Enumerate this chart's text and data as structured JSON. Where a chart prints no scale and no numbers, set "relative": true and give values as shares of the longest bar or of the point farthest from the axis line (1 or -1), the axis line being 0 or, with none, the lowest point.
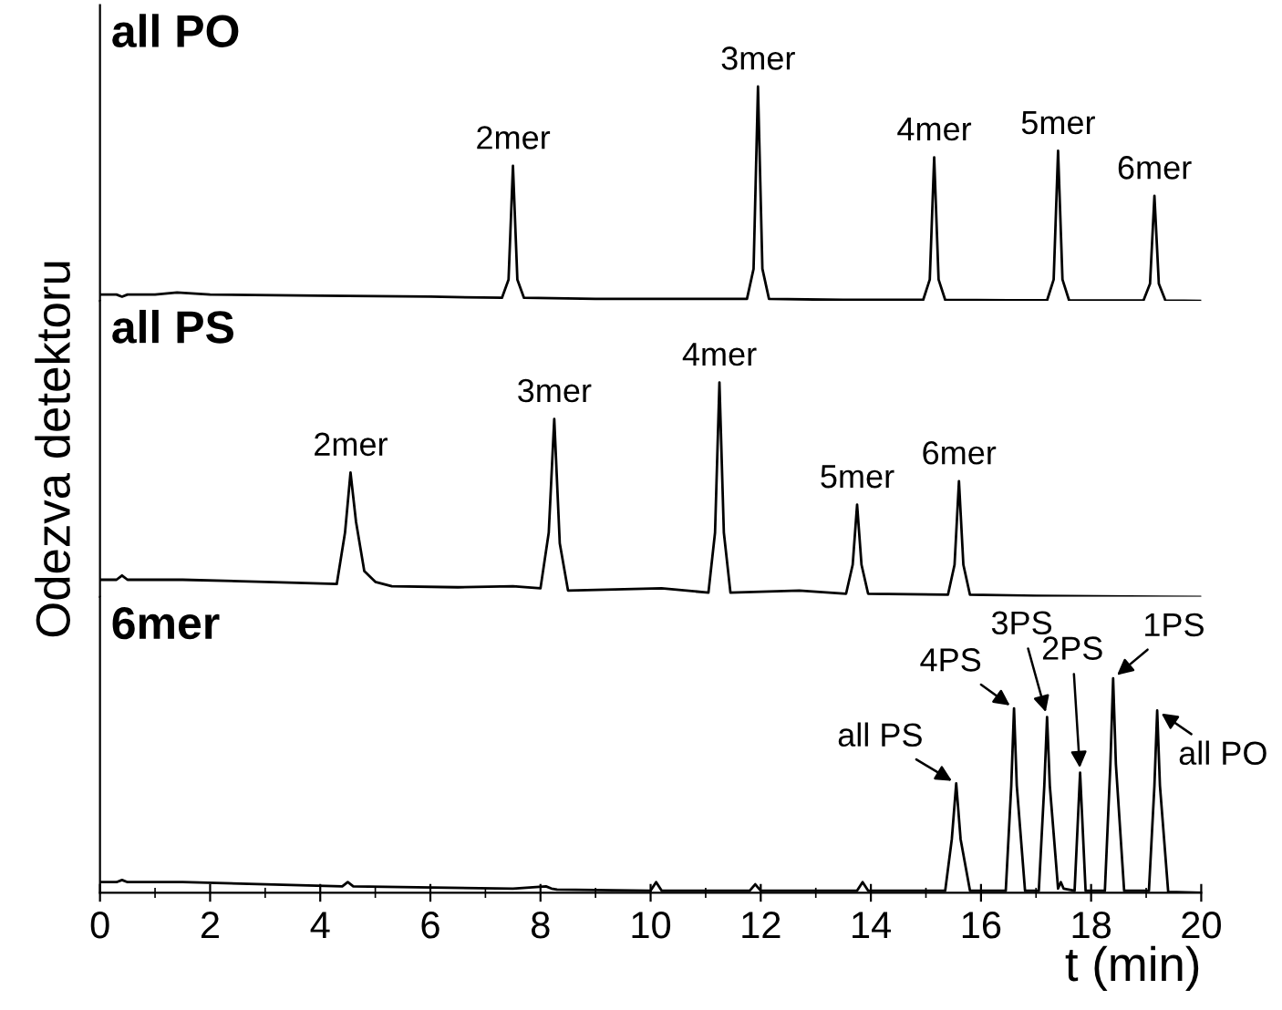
{
  "chart_data": [
    {
      "type": "line",
      "title": "all PO",
      "relative": true,
      "xlim": [
        0,
        20
      ],
      "tick_labels": false,
      "grid": false,
      "series": [
        {
          "color": "#000000",
          "x": [
            0,
            0.3,
            0.4,
            0.5,
            1.0,
            1.4,
            2.0,
            4.0,
            6.0,
            7.3,
            7.42,
            7.5,
            7.58,
            7.7,
            9.0,
            11.75,
            11.87,
            11.95,
            12.03,
            12.15,
            13.5,
            14.95,
            15.07,
            15.15,
            15.23,
            15.35,
            16.5,
            17.2,
            17.32,
            17.4,
            17.48,
            17.6,
            18.3,
            18.95,
            19.07,
            19.15,
            19.23,
            19.35,
            20
          ],
          "values": [
            0.03,
            0.03,
            0.02,
            0.03,
            0.03,
            0.04,
            0.03,
            0.025,
            0.02,
            0.015,
            0.1,
            0.63,
            0.1,
            0.015,
            0.01,
            0.01,
            0.15,
            1.0,
            0.15,
            0.01,
            0.005,
            0.005,
            0.1,
            0.67,
            0.1,
            0.005,
            0.003,
            0.003,
            0.1,
            0.7,
            0.1,
            0.003,
            0.002,
            0.002,
            0.08,
            0.49,
            0.08,
            0.002,
            0
          ]
        }
      ],
      "annotations": [
        {
          "text": "2mer",
          "x": 7.5,
          "y": 0.63
        },
        {
          "text": "3mer",
          "x": 11.95,
          "y": 1.0
        },
        {
          "text": "4mer",
          "x": 15.15,
          "y": 0.67
        },
        {
          "text": "5mer",
          "x": 17.4,
          "y": 0.7
        },
        {
          "text": "6mer",
          "x": 19.15,
          "y": 0.49
        }
      ]
    },
    {
      "type": "line",
      "title": "all PS",
      "relative": true,
      "xlim": [
        0,
        20
      ],
      "tick_labels": false,
      "grid": false,
      "ylabel": "Odezva detektoru",
      "series": [
        {
          "color": "#000000",
          "x": [
            0,
            0.3,
            0.4,
            0.5,
            1.0,
            1.5,
            3.0,
            4.3,
            4.45,
            4.55,
            4.65,
            4.8,
            5.0,
            5.3,
            6.5,
            7.5,
            8.0,
            8.15,
            8.25,
            8.35,
            8.5,
            10.2,
            11.05,
            11.17,
            11.25,
            11.33,
            11.45,
            12.7,
            13.55,
            13.67,
            13.75,
            13.83,
            13.95,
            15.4,
            15.52,
            15.6,
            15.68,
            15.8,
            17.0,
            20
          ],
          "values": [
            0.08,
            0.08,
            0.1,
            0.08,
            0.08,
            0.08,
            0.07,
            0.06,
            0.3,
            0.58,
            0.35,
            0.12,
            0.07,
            0.05,
            0.045,
            0.05,
            0.04,
            0.3,
            0.83,
            0.25,
            0.03,
            0.04,
            0.02,
            0.3,
            1.0,
            0.3,
            0.02,
            0.03,
            0.015,
            0.15,
            0.43,
            0.15,
            0.015,
            0.01,
            0.15,
            0.54,
            0.15,
            0.01,
            0.005,
            0
          ]
        }
      ],
      "annotations": [
        {
          "text": "2mer",
          "x": 4.55,
          "y": 0.58
        },
        {
          "text": "3mer",
          "x": 8.25,
          "y": 0.83
        },
        {
          "text": "4mer",
          "x": 11.25,
          "y": 1.0
        },
        {
          "text": "5mer",
          "x": 13.75,
          "y": 0.43
        },
        {
          "text": "6mer",
          "x": 15.6,
          "y": 0.54
        }
      ]
    },
    {
      "type": "line",
      "title": "6mer",
      "relative": true,
      "xlim": [
        0,
        20
      ],
      "xticks": [
        0,
        2,
        4,
        6,
        8,
        10,
        12,
        14,
        16,
        18,
        20
      ],
      "tick_labels": "x",
      "xlabel": "t (min)",
      "grid": false,
      "series": [
        {
          "color": "#000000",
          "x": [
            0,
            0.3,
            0.4,
            0.5,
            1.5,
            4.4,
            4.5,
            4.6,
            7.5,
            8.1,
            8.2,
            8.3,
            10.0,
            10.1,
            10.2,
            11.8,
            11.9,
            12.0,
            13.75,
            13.85,
            13.95,
            15.35,
            15.47,
            15.55,
            15.63,
            15.8,
            16.45,
            16.55,
            16.6,
            16.65,
            16.8,
            17.05,
            17.15,
            17.2,
            17.25,
            17.4,
            17.45,
            17.5,
            17.7,
            17.8,
            17.9,
            18.25,
            18.35,
            18.4,
            18.45,
            18.6,
            19.05,
            19.15,
            19.2,
            19.25,
            19.4,
            20
          ],
          "values": [
            0.05,
            0.05,
            0.06,
            0.05,
            0.05,
            0.03,
            0.05,
            0.03,
            0.02,
            0.03,
            0.02,
            0.015,
            0.01,
            0.05,
            0.01,
            0.01,
            0.04,
            0.01,
            0.01,
            0.05,
            0.01,
            0.01,
            0.25,
            0.51,
            0.25,
            0.01,
            0.01,
            0.5,
            0.86,
            0.5,
            0.01,
            0.01,
            0.5,
            0.82,
            0.5,
            0.02,
            0.05,
            0.02,
            0.01,
            0.56,
            0.01,
            0.01,
            0.6,
            1.0,
            0.6,
            0.01,
            0.01,
            0.5,
            0.85,
            0.5,
            0.005,
            0
          ]
        }
      ],
      "annotations": [
        {
          "text": "all PS",
          "x": 15.55,
          "y": 0.51
        },
        {
          "text": "4PS",
          "x": 16.6,
          "y": 0.86
        },
        {
          "text": "3PS",
          "x": 17.2,
          "y": 0.82
        },
        {
          "text": "2PS",
          "x": 17.8,
          "y": 0.56
        },
        {
          "text": "1PS",
          "x": 18.4,
          "y": 1.0
        },
        {
          "text": "all PO",
          "x": 19.2,
          "y": 0.85
        }
      ]
    }
  ]
}
